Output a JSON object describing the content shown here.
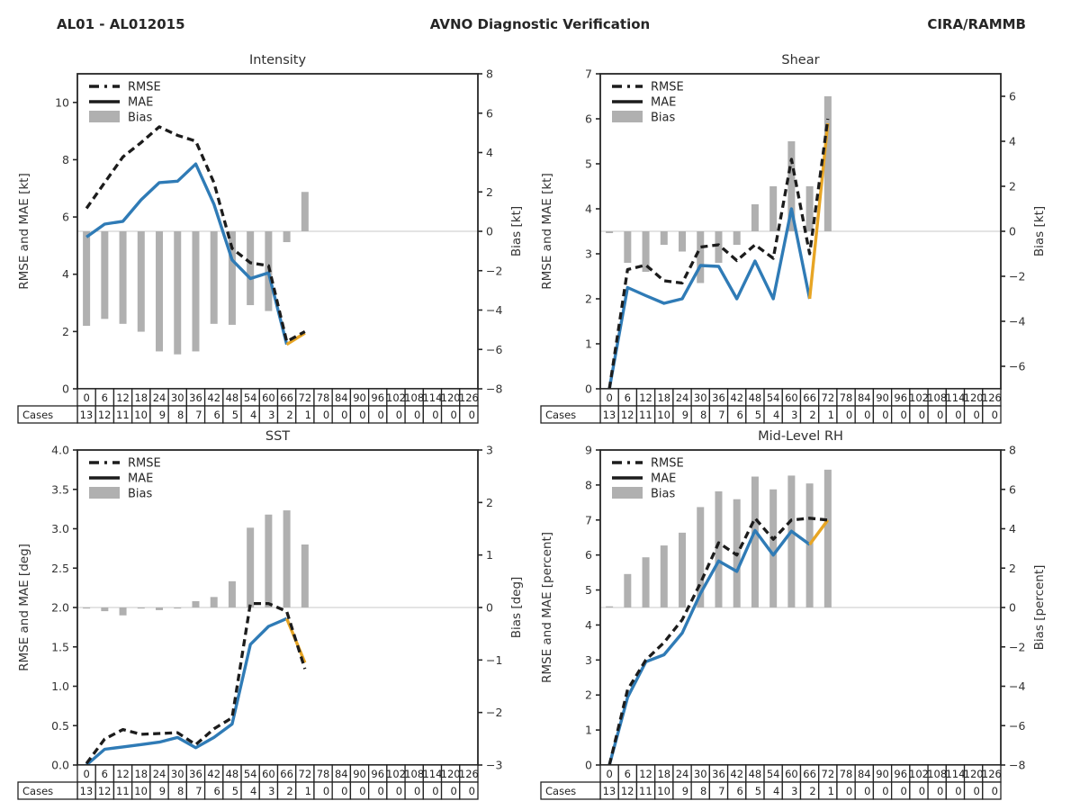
{
  "header": {
    "left": "AL01 - AL012015",
    "center": "AVNO Diagnostic Verification",
    "right": "CIRA/RAMMB"
  },
  "legend": {
    "rmse": "RMSE",
    "mae": "MAE",
    "bias": "Bias"
  },
  "cases_label": "Cases",
  "colors": {
    "rmse_line": "#1c1c1c",
    "mae_line": "#2f7bb6",
    "final_segment": "#e7a524",
    "bias_bar": "#b0b0b0",
    "zero_line": "#c9c9c9",
    "axis": "#262626",
    "tick_text": "#333333",
    "table_border": "#222222"
  },
  "chart_data": {
    "type": "multi-panel line+bar",
    "hours": [
      0,
      6,
      12,
      18,
      24,
      30,
      36,
      42,
      48,
      54,
      60,
      66,
      72,
      78,
      84,
      90,
      96,
      102,
      108,
      114,
      120,
      126
    ],
    "cases": [
      13,
      12,
      11,
      10,
      9,
      8,
      7,
      6,
      5,
      4,
      3,
      2,
      1,
      0,
      0,
      0,
      0,
      0,
      0,
      0,
      0,
      0
    ],
    "final_yellow_start_index": 11,
    "panels": [
      {
        "title": "Intensity",
        "ylabel": "RMSE and MAE [kt]",
        "ylabel_right": "Bias [kt]",
        "ylim": [
          0,
          11
        ],
        "yticks": [
          0,
          2,
          4,
          6,
          8,
          10
        ],
        "ytick_decimals": 0,
        "bias_limit": 8,
        "bias_ticks": [
          8,
          6,
          4,
          2,
          0,
          -2,
          -4,
          -6,
          -8
        ],
        "rmse": [
          6.3,
          7.2,
          8.1,
          8.6,
          9.15,
          8.85,
          8.65,
          7.2,
          4.9,
          4.4,
          4.3,
          1.65,
          2.0
        ],
        "mae": [
          5.3,
          5.75,
          5.85,
          6.6,
          7.2,
          7.25,
          7.85,
          6.45,
          4.5,
          3.85,
          4.05,
          1.55,
          1.95
        ],
        "bias": [
          -4.8,
          -4.45,
          -4.7,
          -5.1,
          -6.1,
          -6.25,
          -6.1,
          -4.7,
          -4.75,
          -3.75,
          -4.05,
          -0.55,
          2.0
        ]
      },
      {
        "title": "Shear",
        "ylabel": "RMSE and MAE [kt]",
        "ylabel_right": "Bias [kt]",
        "ylim": [
          0,
          7
        ],
        "yticks": [
          0,
          1,
          2,
          3,
          4,
          5,
          6,
          7
        ],
        "ytick_decimals": 0,
        "bias_limit": 7,
        "bias_ticks": [
          6,
          4,
          2,
          0,
          -2,
          -4,
          -6
        ],
        "rmse": [
          0,
          2.65,
          2.75,
          2.4,
          2.35,
          3.15,
          3.2,
          2.85,
          3.2,
          2.9,
          5.1,
          3.0,
          6.0
        ],
        "mae": [
          0,
          2.25,
          2.07,
          1.9,
          2.0,
          2.74,
          2.72,
          2.0,
          2.84,
          2.0,
          4.0,
          2.0,
          5.9
        ],
        "bias": [
          -0.08,
          -1.4,
          -1.8,
          -0.6,
          -0.9,
          -2.3,
          -1.4,
          -0.6,
          1.2,
          2.0,
          4.0,
          2.0,
          6.0
        ]
      },
      {
        "title": "SST",
        "ylabel": "RMSE and MAE [deg]",
        "ylabel_right": "Bias [deg]",
        "ylim": [
          0,
          4
        ],
        "yticks": [
          0,
          0.5,
          1,
          1.5,
          2,
          2.5,
          3,
          3.5,
          4
        ],
        "ytick_decimals": 1,
        "bias_limit": 3,
        "bias_ticks": [
          3,
          2,
          1,
          0,
          -1,
          -2,
          -3
        ],
        "rmse": [
          0.02,
          0.33,
          0.45,
          0.39,
          0.4,
          0.41,
          0.26,
          0.46,
          0.6,
          2.05,
          2.05,
          1.95,
          1.22
        ],
        "mae": [
          0.0,
          0.2,
          0.23,
          0.26,
          0.29,
          0.35,
          0.22,
          0.35,
          0.52,
          1.53,
          1.76,
          1.86,
          1.3
        ],
        "bias": [
          -0.02,
          -0.07,
          -0.15,
          -0.02,
          -0.05,
          -0.02,
          0.12,
          0.2,
          0.5,
          1.52,
          1.77,
          1.85,
          1.2
        ]
      },
      {
        "title": "Mid-Level RH",
        "ylabel": "RMSE and MAE [percent]",
        "ylabel_right": "Bias [percent]",
        "ylim": [
          0,
          9
        ],
        "yticks": [
          0,
          1,
          2,
          3,
          4,
          5,
          6,
          7,
          8,
          9
        ],
        "ytick_decimals": 0,
        "bias_limit": 8,
        "bias_ticks": [
          8,
          6,
          4,
          2,
          0,
          -2,
          -4,
          -6,
          -8
        ],
        "rmse": [
          0,
          2.15,
          3.0,
          3.5,
          4.15,
          5.2,
          6.35,
          6.0,
          7.05,
          6.45,
          7.0,
          7.05,
          7.0
        ],
        "mae": [
          0,
          1.93,
          2.95,
          3.15,
          3.77,
          4.9,
          5.83,
          5.53,
          6.7,
          6.0,
          6.68,
          6.3,
          7.0
        ],
        "bias": [
          0.06,
          1.7,
          2.55,
          3.15,
          3.8,
          5.1,
          5.9,
          5.5,
          6.65,
          6.0,
          6.7,
          6.3,
          7.0
        ]
      }
    ]
  }
}
